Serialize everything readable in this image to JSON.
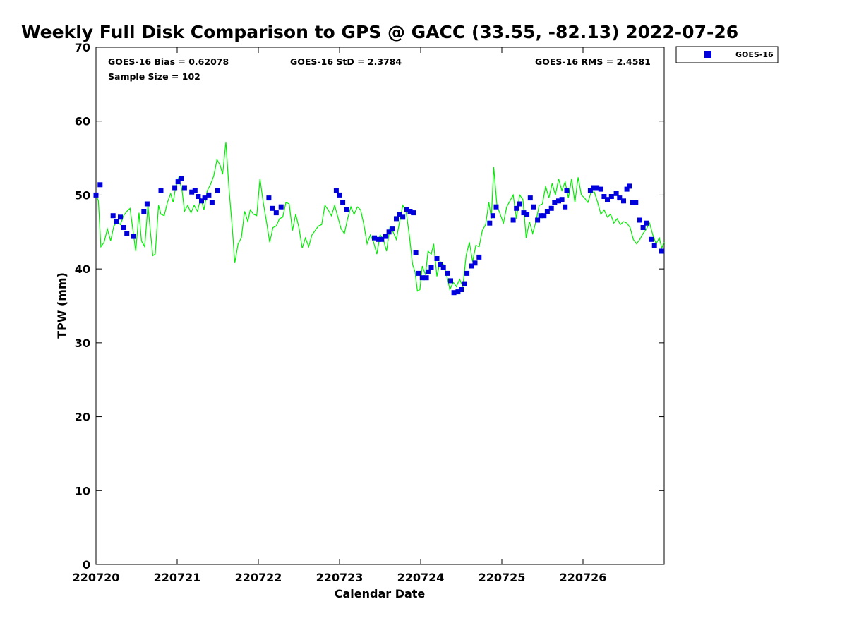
{
  "chart_data": {
    "type": "scatter",
    "title": "Weekly Full Disk Comparison to GPS @ GACC (33.55, -82.13) 2022-07-26",
    "xlabel": "Calendar Date",
    "ylabel": "TPW (mm)",
    "xlim": [
      0,
      7
    ],
    "ylim": [
      0,
      70
    ],
    "xticks": [
      {
        "value": 0,
        "label": "220720"
      },
      {
        "value": 1,
        "label": "220721"
      },
      {
        "value": 2,
        "label": "220722"
      },
      {
        "value": 3,
        "label": "220723"
      },
      {
        "value": 4,
        "label": "220724"
      },
      {
        "value": 5,
        "label": "220725"
      },
      {
        "value": 6,
        "label": "220726"
      }
    ],
    "yticks": [
      0,
      10,
      20,
      30,
      40,
      50,
      60,
      70
    ],
    "grid": false,
    "legend": {
      "placement": "top-right-outside",
      "entries": [
        "GOES-16"
      ]
    },
    "stats": {
      "bias": "GOES-16 Bias = 0.62078",
      "std": "GOES-16 StD = 2.3784",
      "rms": "GOES-16 RMS = 2.4581",
      "sample": "Sample Size = 102"
    },
    "series": [
      {
        "name": "GOES-16",
        "kind": "markers",
        "color": "#0000dd",
        "points": [
          [
            0.0,
            50.0
          ],
          [
            0.05,
            51.4
          ],
          [
            0.21,
            47.2
          ],
          [
            0.25,
            46.4
          ],
          [
            0.3,
            47.0
          ],
          [
            0.34,
            45.6
          ],
          [
            0.38,
            44.8
          ],
          [
            0.46,
            44.4
          ],
          [
            0.59,
            47.8
          ],
          [
            0.63,
            48.8
          ],
          [
            0.8,
            50.6
          ],
          [
            0.97,
            51.0
          ],
          [
            1.01,
            51.8
          ],
          [
            1.05,
            52.2
          ],
          [
            1.09,
            51.0
          ],
          [
            1.18,
            50.4
          ],
          [
            1.22,
            50.6
          ],
          [
            1.26,
            49.8
          ],
          [
            1.3,
            49.2
          ],
          [
            1.34,
            49.6
          ],
          [
            1.39,
            50.0
          ],
          [
            1.43,
            49.0
          ],
          [
            1.5,
            50.6
          ],
          [
            2.13,
            49.6
          ],
          [
            2.17,
            48.2
          ],
          [
            2.22,
            47.6
          ],
          [
            2.28,
            48.4
          ],
          [
            2.96,
            50.6
          ],
          [
            3.0,
            50.0
          ],
          [
            3.04,
            49.0
          ],
          [
            3.09,
            48.0
          ],
          [
            3.43,
            44.2
          ],
          [
            3.48,
            44.0
          ],
          [
            3.52,
            44.0
          ],
          [
            3.57,
            44.4
          ],
          [
            3.61,
            45.0
          ],
          [
            3.65,
            45.4
          ],
          [
            3.7,
            46.8
          ],
          [
            3.74,
            47.4
          ],
          [
            3.78,
            47.0
          ],
          [
            3.83,
            48.0
          ],
          [
            3.87,
            47.8
          ],
          [
            3.91,
            47.6
          ],
          [
            3.94,
            42.2
          ],
          [
            3.97,
            39.4
          ],
          [
            4.02,
            38.8
          ],
          [
            4.07,
            38.8
          ],
          [
            4.09,
            39.6
          ],
          [
            4.13,
            40.2
          ],
          [
            4.2,
            41.4
          ],
          [
            4.24,
            40.6
          ],
          [
            4.28,
            40.2
          ],
          [
            4.33,
            39.4
          ],
          [
            4.37,
            38.4
          ],
          [
            4.41,
            36.8
          ],
          [
            4.46,
            36.9
          ],
          [
            4.5,
            37.2
          ],
          [
            4.54,
            38.0
          ],
          [
            4.57,
            39.4
          ],
          [
            4.63,
            40.4
          ],
          [
            4.67,
            40.8
          ],
          [
            4.72,
            41.6
          ],
          [
            4.85,
            46.2
          ],
          [
            4.89,
            47.2
          ],
          [
            4.93,
            48.4
          ],
          [
            5.14,
            46.6
          ],
          [
            5.18,
            48.2
          ],
          [
            5.22,
            48.8
          ],
          [
            5.27,
            47.6
          ],
          [
            5.31,
            47.4
          ],
          [
            5.35,
            49.6
          ],
          [
            5.39,
            48.4
          ],
          [
            5.44,
            46.6
          ],
          [
            5.48,
            47.2
          ],
          [
            5.52,
            47.2
          ],
          [
            5.56,
            47.8
          ],
          [
            5.61,
            48.2
          ],
          [
            5.65,
            49.0
          ],
          [
            5.7,
            49.2
          ],
          [
            5.74,
            49.4
          ],
          [
            5.78,
            48.4
          ],
          [
            5.8,
            50.6
          ],
          [
            6.09,
            50.6
          ],
          [
            6.13,
            51.0
          ],
          [
            6.17,
            51.0
          ],
          [
            6.22,
            50.8
          ],
          [
            6.26,
            49.8
          ],
          [
            6.3,
            49.4
          ],
          [
            6.35,
            49.8
          ],
          [
            6.41,
            50.2
          ],
          [
            6.45,
            49.6
          ],
          [
            6.5,
            49.2
          ],
          [
            6.54,
            50.8
          ],
          [
            6.57,
            51.2
          ],
          [
            6.61,
            49.0
          ],
          [
            6.65,
            49.0
          ],
          [
            6.7,
            46.6
          ],
          [
            6.74,
            45.6
          ],
          [
            6.78,
            46.2
          ],
          [
            6.84,
            44.0
          ],
          [
            6.88,
            43.2
          ],
          [
            6.97,
            42.4
          ]
        ]
      },
      {
        "name": "",
        "kind": "line",
        "color": "#00ee00",
        "points": [
          [
            0.0,
            50.0
          ],
          [
            0.03,
            49.2
          ],
          [
            0.06,
            43.0
          ],
          [
            0.1,
            43.6
          ],
          [
            0.14,
            45.4
          ],
          [
            0.18,
            43.8
          ],
          [
            0.22,
            45.8
          ],
          [
            0.26,
            46.4
          ],
          [
            0.3,
            46.0
          ],
          [
            0.34,
            47.2
          ],
          [
            0.38,
            47.8
          ],
          [
            0.42,
            48.2
          ],
          [
            0.46,
            44.8
          ],
          [
            0.49,
            42.4
          ],
          [
            0.53,
            47.6
          ],
          [
            0.56,
            43.8
          ],
          [
            0.6,
            43.0
          ],
          [
            0.64,
            48.6
          ],
          [
            0.67,
            45.0
          ],
          [
            0.7,
            41.8
          ],
          [
            0.73,
            42.0
          ],
          [
            0.77,
            48.6
          ],
          [
            0.8,
            47.4
          ],
          [
            0.84,
            47.2
          ],
          [
            0.88,
            49.0
          ],
          [
            0.92,
            50.2
          ],
          [
            0.95,
            49.0
          ],
          [
            0.98,
            51.0
          ],
          [
            1.02,
            52.4
          ],
          [
            1.06,
            50.6
          ],
          [
            1.09,
            47.8
          ],
          [
            1.13,
            48.6
          ],
          [
            1.17,
            47.6
          ],
          [
            1.21,
            48.6
          ],
          [
            1.25,
            47.8
          ],
          [
            1.29,
            49.6
          ],
          [
            1.33,
            48.0
          ],
          [
            1.37,
            50.6
          ],
          [
            1.41,
            51.4
          ],
          [
            1.45,
            52.6
          ],
          [
            1.49,
            54.8
          ],
          [
            1.53,
            54.0
          ],
          [
            1.56,
            52.8
          ],
          [
            1.6,
            57.2
          ],
          [
            1.64,
            50.6
          ],
          [
            1.68,
            45.4
          ],
          [
            1.71,
            40.8
          ],
          [
            1.75,
            43.4
          ],
          [
            1.79,
            44.2
          ],
          [
            1.83,
            47.8
          ],
          [
            1.87,
            46.4
          ],
          [
            1.9,
            48.0
          ],
          [
            1.94,
            47.4
          ],
          [
            1.98,
            47.2
          ],
          [
            2.02,
            52.2
          ],
          [
            2.06,
            49.0
          ],
          [
            2.1,
            46.4
          ],
          [
            2.14,
            43.6
          ],
          [
            2.18,
            45.6
          ],
          [
            2.22,
            45.8
          ],
          [
            2.26,
            46.8
          ],
          [
            2.3,
            47.0
          ],
          [
            2.34,
            49.0
          ],
          [
            2.38,
            48.8
          ],
          [
            2.42,
            45.2
          ],
          [
            2.46,
            47.4
          ],
          [
            2.5,
            45.6
          ],
          [
            2.54,
            42.8
          ],
          [
            2.58,
            44.2
          ],
          [
            2.62,
            43.0
          ],
          [
            2.66,
            44.6
          ],
          [
            2.7,
            45.2
          ],
          [
            2.74,
            45.8
          ],
          [
            2.78,
            46.0
          ],
          [
            2.82,
            48.6
          ],
          [
            2.86,
            48.0
          ],
          [
            2.9,
            47.2
          ],
          [
            2.94,
            48.6
          ],
          [
            2.98,
            47.0
          ],
          [
            3.02,
            45.4
          ],
          [
            3.06,
            44.8
          ],
          [
            3.1,
            46.8
          ],
          [
            3.14,
            48.4
          ],
          [
            3.18,
            47.4
          ],
          [
            3.22,
            48.4
          ],
          [
            3.26,
            48.0
          ],
          [
            3.3,
            46.0
          ],
          [
            3.34,
            43.4
          ],
          [
            3.38,
            44.6
          ],
          [
            3.42,
            43.6
          ],
          [
            3.46,
            42.0
          ],
          [
            3.5,
            44.6
          ],
          [
            3.54,
            44.0
          ],
          [
            3.58,
            42.4
          ],
          [
            3.62,
            45.6
          ],
          [
            3.66,
            45.0
          ],
          [
            3.7,
            44.0
          ],
          [
            3.74,
            46.4
          ],
          [
            3.78,
            48.6
          ],
          [
            3.82,
            47.8
          ],
          [
            3.86,
            44.6
          ],
          [
            3.9,
            40.6
          ],
          [
            3.93,
            39.6
          ],
          [
            3.96,
            37.0
          ],
          [
            3.99,
            37.2
          ],
          [
            4.02,
            40.4
          ],
          [
            4.06,
            39.2
          ],
          [
            4.09,
            42.4
          ],
          [
            4.13,
            42.0
          ],
          [
            4.16,
            43.4
          ],
          [
            4.2,
            39.0
          ],
          [
            4.24,
            41.0
          ],
          [
            4.28,
            40.6
          ],
          [
            4.32,
            39.2
          ],
          [
            4.36,
            37.2
          ],
          [
            4.4,
            38.2
          ],
          [
            4.44,
            37.6
          ],
          [
            4.48,
            38.6
          ],
          [
            4.52,
            37.6
          ],
          [
            4.56,
            41.8
          ],
          [
            4.6,
            43.6
          ],
          [
            4.64,
            41.0
          ],
          [
            4.68,
            43.2
          ],
          [
            4.72,
            43.0
          ],
          [
            4.76,
            45.2
          ],
          [
            4.8,
            46.0
          ],
          [
            4.84,
            49.0
          ],
          [
            4.87,
            46.8
          ],
          [
            4.9,
            53.8
          ],
          [
            4.94,
            48.6
          ],
          [
            4.98,
            47.4
          ],
          [
            5.02,
            46.2
          ],
          [
            5.06,
            48.4
          ],
          [
            5.1,
            49.2
          ],
          [
            5.14,
            50.0
          ],
          [
            5.18,
            46.8
          ],
          [
            5.22,
            50.0
          ],
          [
            5.26,
            49.4
          ],
          [
            5.3,
            44.2
          ],
          [
            5.34,
            46.4
          ],
          [
            5.38,
            44.8
          ],
          [
            5.42,
            46.4
          ],
          [
            5.46,
            48.6
          ],
          [
            5.5,
            48.8
          ],
          [
            5.54,
            51.2
          ],
          [
            5.58,
            49.6
          ],
          [
            5.62,
            51.6
          ],
          [
            5.66,
            50.0
          ],
          [
            5.7,
            52.2
          ],
          [
            5.74,
            50.6
          ],
          [
            5.78,
            51.8
          ],
          [
            5.82,
            49.6
          ],
          [
            5.86,
            52.2
          ],
          [
            5.9,
            49.0
          ],
          [
            5.94,
            52.4
          ],
          [
            5.98,
            50.0
          ],
          [
            6.02,
            49.6
          ],
          [
            6.06,
            49.0
          ],
          [
            6.1,
            50.4
          ],
          [
            6.14,
            50.4
          ],
          [
            6.18,
            49.0
          ],
          [
            6.22,
            47.4
          ],
          [
            6.26,
            48.0
          ],
          [
            6.3,
            47.0
          ],
          [
            6.34,
            47.4
          ],
          [
            6.38,
            46.2
          ],
          [
            6.42,
            46.8
          ],
          [
            6.46,
            46.0
          ],
          [
            6.5,
            46.4
          ],
          [
            6.54,
            46.2
          ],
          [
            6.58,
            45.6
          ],
          [
            6.62,
            44.0
          ],
          [
            6.66,
            43.4
          ],
          [
            6.7,
            44.0
          ],
          [
            6.74,
            44.8
          ],
          [
            6.78,
            45.4
          ],
          [
            6.82,
            46.2
          ],
          [
            6.86,
            44.6
          ],
          [
            6.9,
            43.4
          ],
          [
            6.94,
            44.2
          ],
          [
            6.97,
            42.8
          ],
          [
            7.0,
            43.6
          ]
        ]
      }
    ]
  }
}
